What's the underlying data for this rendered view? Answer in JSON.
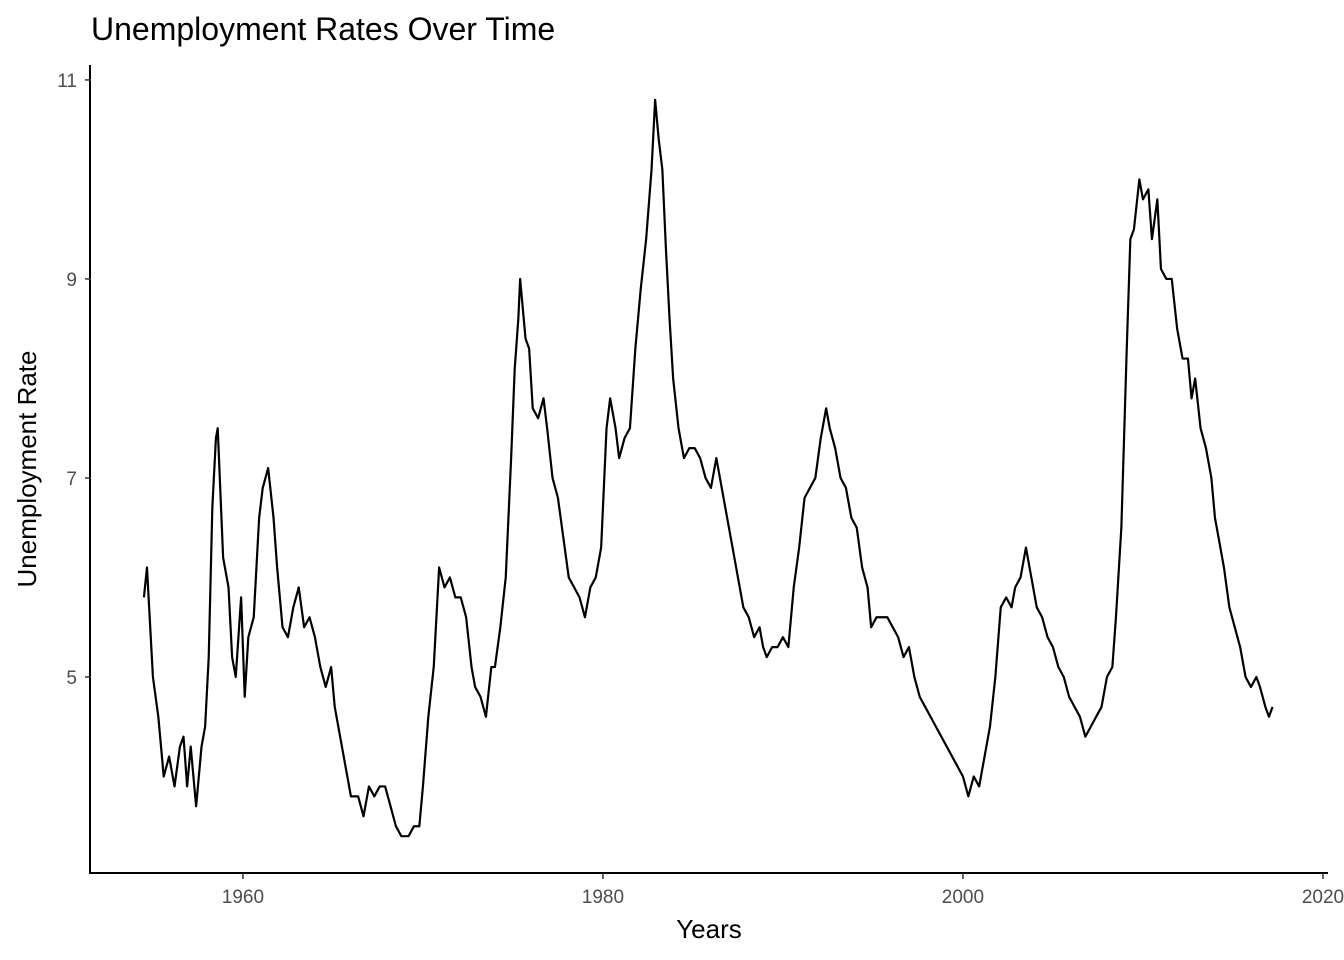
{
  "chart_data": {
    "type": "line",
    "title": "Unemployment Rates Over Time",
    "x_label": "Years",
    "y_label": "Unemployment Rate",
    "xlim": [
      1951.56,
      2020.28
    ],
    "ylim": [
      3.03,
      11.15
    ],
    "xticks": [
      1960,
      1980,
      2000,
      2020
    ],
    "yticks": [
      5,
      7,
      9,
      11
    ],
    "grid": false,
    "color": "#000000",
    "x": [
      1954.5,
      1954.67,
      1955.0,
      1955.3,
      1955.6,
      1955.9,
      1956.2,
      1956.5,
      1956.7,
      1956.9,
      1957.1,
      1957.4,
      1957.7,
      1957.9,
      1958.1,
      1958.3,
      1958.5,
      1958.6,
      1958.9,
      1959.2,
      1959.4,
      1959.6,
      1959.9,
      1960.1,
      1960.3,
      1960.6,
      1960.9,
      1961.1,
      1961.4,
      1961.7,
      1961.9,
      1962.2,
      1962.5,
      1962.8,
      1963.1,
      1963.4,
      1963.7,
      1964.0,
      1964.3,
      1964.6,
      1964.9,
      1965.1,
      1965.4,
      1965.8,
      1966.0,
      1966.4,
      1966.7,
      1967.0,
      1967.3,
      1967.6,
      1967.9,
      1968.2,
      1968.5,
      1968.8,
      1969.2,
      1969.5,
      1969.8,
      1970.0,
      1970.3,
      1970.6,
      1970.9,
      1971.2,
      1971.5,
      1971.8,
      1972.1,
      1972.4,
      1972.7,
      1972.9,
      1973.2,
      1973.5,
      1973.8,
      1974.0,
      1974.3,
      1974.6,
      1974.9,
      1975.1,
      1975.3,
      1975.4,
      1975.7,
      1975.9,
      1976.1,
      1976.4,
      1976.7,
      1976.9,
      1977.2,
      1977.5,
      1977.8,
      1978.1,
      1978.4,
      1978.7,
      1979.0,
      1979.3,
      1979.6,
      1979.9,
      1980.2,
      1980.4,
      1980.7,
      1980.9,
      1981.2,
      1981.5,
      1981.8,
      1982.1,
      1982.4,
      1982.7,
      1982.9,
      1983.1,
      1983.3,
      1983.5,
      1983.7,
      1983.9,
      1984.2,
      1984.5,
      1984.8,
      1985.1,
      1985.4,
      1985.7,
      1986.0,
      1986.3,
      1986.6,
      1986.9,
      1987.2,
      1987.5,
      1987.8,
      1988.1,
      1988.4,
      1988.7,
      1988.9,
      1989.1,
      1989.4,
      1989.7,
      1990.0,
      1990.3,
      1990.6,
      1990.9,
      1991.2,
      1991.5,
      1991.8,
      1992.1,
      1992.4,
      1992.6,
      1992.9,
      1993.2,
      1993.5,
      1993.8,
      1994.1,
      1994.4,
      1994.7,
      1994.9,
      1995.2,
      1995.5,
      1995.8,
      1996.1,
      1996.4,
      1996.7,
      1997.0,
      1997.3,
      1997.6,
      1997.9,
      1998.2,
      1998.5,
      1998.8,
      1999.1,
      1999.4,
      1999.7,
      2000.0,
      2000.3,
      2000.6,
      2000.9,
      2001.2,
      2001.5,
      2001.8,
      2002.1,
      2002.4,
      2002.7,
      2002.9,
      2003.2,
      2003.5,
      2003.8,
      2004.1,
      2004.4,
      2004.7,
      2005.0,
      2005.3,
      2005.6,
      2005.9,
      2006.2,
      2006.5,
      2006.8,
      2007.1,
      2007.4,
      2007.7,
      2008.0,
      2008.3,
      2008.5,
      2008.8,
      2009.1,
      2009.3,
      2009.5,
      2009.8,
      2010.0,
      2010.3,
      2010.5,
      2010.8,
      2011.0,
      2011.3,
      2011.6,
      2011.9,
      2012.2,
      2012.5,
      2012.7,
      2012.9,
      2013.2,
      2013.5,
      2013.8,
      2014.0,
      2014.3,
      2014.5,
      2014.8,
      2015.1,
      2015.4,
      2015.7,
      2016.0,
      2016.3,
      2016.5,
      2016.8,
      2017.0,
      2017.2
    ],
    "values": [
      5.8,
      6.1,
      5.0,
      4.6,
      4.0,
      4.2,
      3.9,
      4.3,
      4.4,
      3.9,
      4.3,
      3.7,
      4.3,
      4.5,
      5.2,
      6.7,
      7.4,
      7.5,
      6.2,
      5.9,
      5.2,
      5.0,
      5.8,
      4.8,
      5.4,
      5.6,
      6.6,
      6.9,
      7.1,
      6.6,
      6.1,
      5.5,
      5.4,
      5.7,
      5.9,
      5.5,
      5.6,
      5.4,
      5.1,
      4.9,
      5.1,
      4.7,
      4.4,
      4.0,
      3.8,
      3.8,
      3.6,
      3.9,
      3.8,
      3.9,
      3.9,
      3.7,
      3.5,
      3.4,
      3.4,
      3.5,
      3.5,
      3.9,
      4.6,
      5.1,
      6.1,
      5.9,
      6.0,
      5.8,
      5.8,
      5.6,
      5.1,
      4.9,
      4.8,
      4.6,
      5.1,
      5.1,
      5.5,
      6.0,
      7.2,
      8.1,
      8.6,
      9.0,
      8.4,
      8.3,
      7.7,
      7.6,
      7.8,
      7.5,
      7.0,
      6.8,
      6.4,
      6.0,
      5.9,
      5.8,
      5.6,
      5.9,
      6.0,
      6.3,
      7.5,
      7.8,
      7.5,
      7.2,
      7.4,
      7.5,
      8.3,
      8.9,
      9.4,
      10.1,
      10.8,
      10.4,
      10.1,
      9.3,
      8.6,
      8.0,
      7.5,
      7.2,
      7.3,
      7.3,
      7.2,
      7.0,
      6.9,
      7.2,
      6.9,
      6.6,
      6.3,
      6.0,
      5.7,
      5.6,
      5.4,
      5.5,
      5.3,
      5.2,
      5.3,
      5.3,
      5.4,
      5.3,
      5.9,
      6.3,
      6.8,
      6.9,
      7.0,
      7.4,
      7.7,
      7.5,
      7.3,
      7.0,
      6.9,
      6.6,
      6.5,
      6.1,
      5.9,
      5.5,
      5.6,
      5.6,
      5.6,
      5.5,
      5.4,
      5.2,
      5.3,
      5.0,
      4.8,
      4.7,
      4.6,
      4.5,
      4.4,
      4.3,
      4.2,
      4.1,
      4.0,
      3.8,
      4.0,
      3.9,
      4.2,
      4.5,
      5.0,
      5.7,
      5.8,
      5.7,
      5.9,
      6.0,
      6.3,
      6.0,
      5.7,
      5.6,
      5.4,
      5.3,
      5.1,
      5.0,
      4.8,
      4.7,
      4.6,
      4.4,
      4.5,
      4.6,
      4.7,
      5.0,
      5.1,
      5.6,
      6.5,
      8.3,
      9.4,
      9.5,
      10.0,
      9.8,
      9.9,
      9.4,
      9.8,
      9.1,
      9.0,
      9.0,
      8.5,
      8.2,
      8.2,
      7.8,
      8.0,
      7.5,
      7.3,
      7.0,
      6.6,
      6.3,
      6.1,
      5.7,
      5.5,
      5.3,
      5.0,
      4.9,
      5.0,
      4.9,
      4.7,
      4.6,
      4.7
    ]
  }
}
